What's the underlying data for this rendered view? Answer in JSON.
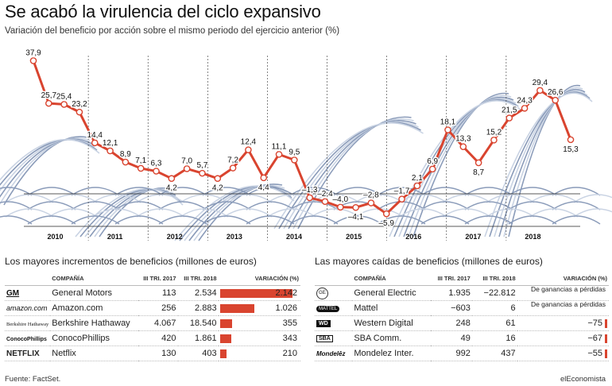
{
  "header": {
    "title": "Se acabó la virulencia del ciclo expansivo",
    "subtitle": "Variación del beneficio por acción sobre el mismo periodo del ejercicio anterior (%)"
  },
  "chart_data": {
    "type": "line",
    "title": "Se acabó la virulencia del ciclo expansivo",
    "subtitle": "Variación del beneficio por acción sobre el mismo periodo del ejercicio anterior (%)",
    "years": [
      "2010",
      "2011",
      "2012",
      "2013",
      "2014",
      "2015",
      "2016",
      "2017",
      "2018"
    ],
    "series": [
      {
        "values": [
          37.9,
          25.7,
          25.4,
          23.2,
          14.4,
          12.1,
          8.9,
          7.1,
          6.3,
          4.2,
          7.0,
          5.7,
          4.2,
          7.2,
          12.4,
          4.4,
          11.1,
          9.5,
          -1.3,
          -2.4,
          -4.0,
          -4.1,
          -2.8,
          -5.9,
          -1.7,
          2.1,
          6.9,
          18.1,
          13.3,
          8.7,
          15.2,
          21.5,
          24.3,
          29.4,
          26.6,
          15.3
        ],
        "labels": [
          "37,9",
          "25,7",
          "25,4",
          "23,2",
          "14,4",
          "12,1",
          "8,9",
          "7,1",
          "6,3",
          "4,2",
          "7,0",
          "5,7",
          "4,2",
          "7,2",
          "12,4",
          "4,4",
          "11,1",
          "9,5",
          "–1,3",
          "–2,4",
          "–4,0",
          "–4,1",
          "–2,8",
          "–5,9",
          "–1,7",
          "2,1",
          "6,9",
          "18,1",
          "13,3",
          "8,7",
          "15,2",
          "21,5",
          "24,3",
          "29,4",
          "26,6",
          "15,3"
        ],
        "color": "#d9442f"
      }
    ],
    "ylim": [
      -10,
      40
    ],
    "grid": false
  },
  "left_table": {
    "title": "Los mayores incrementos de beneficios (millones de euros)",
    "headers": [
      "COMPAÑÍA",
      "III TRI. 2017",
      "III TRI. 2018",
      "VARIACIÓN (%)"
    ],
    "rows": [
      {
        "logo": "GM",
        "company": "General Motors",
        "q2017": "113",
        "q2018": "2.534",
        "variation": "2.142",
        "value": 2142
      },
      {
        "logo": "amazon.com",
        "company": "Amazon.com",
        "q2017": "256",
        "q2018": "2.883",
        "variation": "1.026",
        "value": 1026
      },
      {
        "logo": "Berkshire Hathaway",
        "company": "Berkshire Hathaway",
        "q2017": "4.067",
        "q2018": "18.540",
        "variation": "355",
        "value": 355
      },
      {
        "logo": "ConocoPhillips",
        "company": "ConocoPhillips",
        "q2017": "420",
        "q2018": "1.861",
        "variation": "343",
        "value": 343
      },
      {
        "logo": "NETFLIX",
        "company": "Netflix",
        "q2017": "130",
        "q2018": "403",
        "variation": "210",
        "value": 210
      }
    ]
  },
  "right_table": {
    "title": "Las mayores caídas de beneficios (millones de euros)",
    "headers": [
      "COMPAÑÍA",
      "III TRI. 2017",
      "III TRI. 2018",
      "VARIACIÓN (%)"
    ],
    "rows": [
      {
        "logo": "GE",
        "company": "General Electric",
        "q2017": "1.935",
        "q2018": "−22.812",
        "variation": "",
        "note": "De ganancias a pérdidas",
        "value": null
      },
      {
        "logo": "MATTEL",
        "company": "Mattel",
        "q2017": "−603",
        "q2018": "6",
        "variation": "",
        "note": "De ganancias a pérdidas",
        "value": null
      },
      {
        "logo": "WD",
        "company": "Western Digital",
        "q2017": "248",
        "q2018": "61",
        "variation": "−75",
        "note": "",
        "value": -75
      },
      {
        "logo": "SBA",
        "company": "SBA Comm.",
        "q2017": "49",
        "q2018": "16",
        "variation": "−67",
        "note": "",
        "value": -67
      },
      {
        "logo": "Mondelēz",
        "company": "Mondelez Inter.",
        "q2017": "992",
        "q2018": "437",
        "variation": "−55",
        "note": "",
        "value": -55
      }
    ]
  },
  "footer": {
    "source": "Fuente: FactSet.",
    "brand": "elEconomista"
  }
}
